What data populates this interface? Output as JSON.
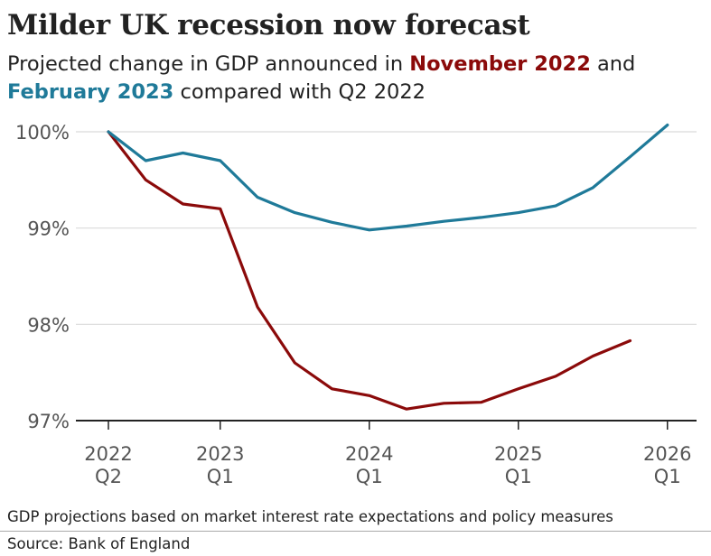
{
  "header": {
    "title": "Milder UK recession now forecast",
    "subtitle_pre": "Projected change in GDP announced in ",
    "subtitle_series1": "November 2022",
    "subtitle_mid": " and",
    "subtitle_series2": "February 2023",
    "subtitle_post": " compared with Q2 2022"
  },
  "footer": {
    "note": "GDP projections based on market interest rate expectations and policy measures",
    "source": "Source: Bank of England"
  },
  "colors": {
    "november": "#8b0a0a",
    "february": "#1f7a99",
    "grid": "#d9d9d9",
    "axis": "#222222",
    "tick_text": "#555555"
  },
  "chart_data": {
    "type": "line",
    "title": "Milder UK recession now forecast",
    "xlabel": "",
    "ylabel": "",
    "ylim": [
      97,
      100
    ],
    "y_ticks": [
      {
        "value": 100,
        "label": "100%"
      },
      {
        "value": 99,
        "label": "99%"
      },
      {
        "value": 98,
        "label": "98%"
      },
      {
        "value": 97,
        "label": "97%"
      }
    ],
    "x_ticks": [
      {
        "value": "2022 Q2",
        "line1": "2022",
        "line2": "Q2"
      },
      {
        "value": "2023 Q1",
        "line1": "2023",
        "line2": "Q1"
      },
      {
        "value": "2024 Q1",
        "line1": "2024",
        "line2": "Q1"
      },
      {
        "value": "2025 Q1",
        "line1": "2025",
        "line2": "Q1"
      },
      {
        "value": "2026 Q1",
        "line1": "2026",
        "line2": "Q1"
      }
    ],
    "grid": true,
    "x": [
      "2022 Q2",
      "2022 Q3",
      "2022 Q4",
      "2023 Q1",
      "2023 Q2",
      "2023 Q3",
      "2023 Q4",
      "2024 Q1",
      "2024 Q2",
      "2024 Q3",
      "2024 Q4",
      "2025 Q1",
      "2025 Q2",
      "2025 Q3",
      "2025 Q4",
      "2026 Q1"
    ],
    "series": [
      {
        "name": "November 2022",
        "color": "#8b0a0a",
        "values": [
          100,
          99.5,
          99.25,
          99.2,
          98.18,
          97.6,
          97.33,
          97.26,
          97.12,
          97.18,
          97.19,
          97.33,
          97.46,
          97.67,
          97.83,
          null
        ]
      },
      {
        "name": "February 2023",
        "color": "#1f7a99",
        "values": [
          100,
          99.7,
          99.78,
          99.7,
          99.32,
          99.16,
          99.06,
          98.98,
          99.02,
          99.07,
          99.11,
          99.16,
          99.23,
          99.42,
          99.74,
          100.07
        ]
      }
    ]
  }
}
